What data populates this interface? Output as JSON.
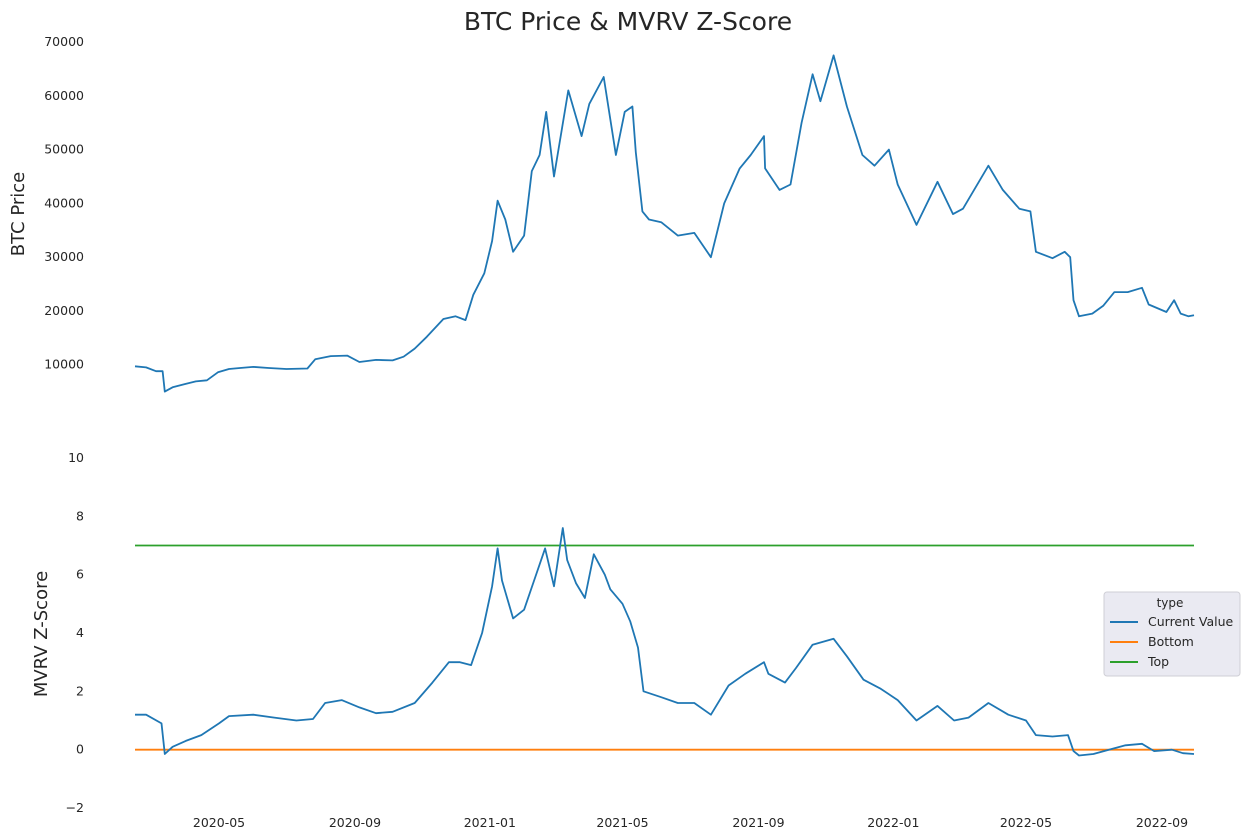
{
  "title": "BTC Price & MVRV Z-Score",
  "colors": {
    "blue": "#1f77b4",
    "orange": "#ff7f0e",
    "green": "#2ca02c"
  },
  "chart_data": [
    {
      "type": "line",
      "ylabel": "BTC  Price",
      "ylim": [
        4000,
        70000
      ],
      "yticks": [
        10000,
        20000,
        30000,
        40000,
        50000,
        60000,
        70000
      ],
      "xlim": [
        "2020-02-15",
        "2022-09-30"
      ],
      "grid": false,
      "series": [
        {
          "name": "",
          "color": "#1f77b4",
          "points": [
            [
              "2020-02-15",
              9700
            ],
            [
              "2020-02-25",
              9500
            ],
            [
              "2020-03-05",
              8800
            ],
            [
              "2020-03-11",
              8800
            ],
            [
              "2020-03-13",
              5000
            ],
            [
              "2020-03-20",
              5800
            ],
            [
              "2020-03-31",
              6400
            ],
            [
              "2020-04-10",
              6900
            ],
            [
              "2020-04-20",
              7100
            ],
            [
              "2020-04-30",
              8600
            ],
            [
              "2020-05-10",
              9200
            ],
            [
              "2020-05-20",
              9400
            ],
            [
              "2020-06-01",
              9600
            ],
            [
              "2020-06-15",
              9400
            ],
            [
              "2020-07-01",
              9200
            ],
            [
              "2020-07-20",
              9300
            ],
            [
              "2020-07-27",
              11000
            ],
            [
              "2020-08-10",
              11600
            ],
            [
              "2020-08-25",
              11700
            ],
            [
              "2020-09-05",
              10500
            ],
            [
              "2020-09-20",
              10900
            ],
            [
              "2020-10-05",
              10800
            ],
            [
              "2020-10-15",
              11500
            ],
            [
              "2020-10-25",
              13000
            ],
            [
              "2020-11-05",
              15200
            ],
            [
              "2020-11-20",
              18500
            ],
            [
              "2020-12-01",
              19000
            ],
            [
              "2020-12-10",
              18300
            ],
            [
              "2020-12-17",
              23000
            ],
            [
              "2020-12-27",
              27000
            ],
            [
              "2021-01-03",
              33000
            ],
            [
              "2021-01-08",
              40500
            ],
            [
              "2021-01-15",
              37000
            ],
            [
              "2021-01-22",
              31000
            ],
            [
              "2021-02-01",
              34000
            ],
            [
              "2021-02-08",
              46000
            ],
            [
              "2021-02-15",
              49000
            ],
            [
              "2021-02-21",
              57000
            ],
            [
              "2021-02-28",
              45000
            ],
            [
              "2021-03-13",
              61000
            ],
            [
              "2021-03-25",
              52500
            ],
            [
              "2021-04-01",
              58500
            ],
            [
              "2021-04-14",
              63500
            ],
            [
              "2021-04-25",
              49000
            ],
            [
              "2021-05-03",
              57000
            ],
            [
              "2021-05-10",
              58000
            ],
            [
              "2021-05-13",
              49500
            ],
            [
              "2021-05-19",
              38500
            ],
            [
              "2021-05-25",
              37000
            ],
            [
              "2021-06-05",
              36500
            ],
            [
              "2021-06-20",
              34000
            ],
            [
              "2021-07-05",
              34500
            ],
            [
              "2021-07-20",
              30000
            ],
            [
              "2021-08-01",
              40000
            ],
            [
              "2021-08-15",
              46500
            ],
            [
              "2021-08-25",
              49000
            ],
            [
              "2021-09-06",
              52500
            ],
            [
              "2021-09-07",
              46500
            ],
            [
              "2021-09-20",
              42500
            ],
            [
              "2021-09-30",
              43500
            ],
            [
              "2021-10-10",
              55000
            ],
            [
              "2021-10-20",
              64000
            ],
            [
              "2021-10-27",
              59000
            ],
            [
              "2021-11-08",
              67500
            ],
            [
              "2021-11-20",
              58000
            ],
            [
              "2021-12-04",
              49000
            ],
            [
              "2021-12-15",
              47000
            ],
            [
              "2021-12-28",
              50000
            ],
            [
              "2022-01-05",
              43500
            ],
            [
              "2022-01-22",
              36000
            ],
            [
              "2022-02-10",
              44000
            ],
            [
              "2022-02-24",
              38000
            ],
            [
              "2022-03-05",
              39000
            ],
            [
              "2022-03-28",
              47000
            ],
            [
              "2022-04-10",
              42500
            ],
            [
              "2022-04-25",
              39000
            ],
            [
              "2022-05-05",
              38500
            ],
            [
              "2022-05-10",
              31000
            ],
            [
              "2022-05-25",
              29800
            ],
            [
              "2022-06-05",
              31000
            ],
            [
              "2022-06-10",
              30000
            ],
            [
              "2022-06-13",
              22000
            ],
            [
              "2022-06-18",
              19000
            ],
            [
              "2022-06-30",
              19500
            ],
            [
              "2022-07-10",
              21000
            ],
            [
              "2022-07-20",
              23500
            ],
            [
              "2022-08-01",
              23500
            ],
            [
              "2022-08-14",
              24300
            ],
            [
              "2022-08-20",
              21200
            ],
            [
              "2022-09-05",
              19800
            ],
            [
              "2022-09-12",
              22000
            ],
            [
              "2022-09-18",
              19500
            ],
            [
              "2022-09-25",
              19000
            ],
            [
              "2022-09-30",
              19200
            ]
          ]
        }
      ]
    },
    {
      "type": "line",
      "ylabel": "MVRV Z-Score",
      "ylim": [
        -2,
        10
      ],
      "yticks": [
        -2,
        0,
        2,
        4,
        6,
        8,
        10
      ],
      "xlim": [
        "2020-02-15",
        "2022-09-30"
      ],
      "xticks": [
        "2020-05",
        "2020-09",
        "2021-01",
        "2021-05",
        "2021-09",
        "2022-01",
        "2022-05",
        "2022-09"
      ],
      "grid": false,
      "legend": {
        "title": "type",
        "placement": "right"
      },
      "series": [
        {
          "name": "Current Value",
          "color": "#1f77b4",
          "points": [
            [
              "2020-02-15",
              1.2
            ],
            [
              "2020-02-25",
              1.2
            ],
            [
              "2020-03-10",
              0.9
            ],
            [
              "2020-03-13",
              -0.15
            ],
            [
              "2020-03-20",
              0.1
            ],
            [
              "2020-04-01",
              0.3
            ],
            [
              "2020-04-15",
              0.5
            ],
            [
              "2020-05-01",
              0.9
            ],
            [
              "2020-05-10",
              1.15
            ],
            [
              "2020-06-01",
              1.2
            ],
            [
              "2020-06-20",
              1.1
            ],
            [
              "2020-07-10",
              1.0
            ],
            [
              "2020-07-25",
              1.05
            ],
            [
              "2020-08-05",
              1.6
            ],
            [
              "2020-08-20",
              1.7
            ],
            [
              "2020-09-05",
              1.45
            ],
            [
              "2020-09-20",
              1.25
            ],
            [
              "2020-10-05",
              1.3
            ],
            [
              "2020-10-25",
              1.6
            ],
            [
              "2020-11-10",
              2.3
            ],
            [
              "2020-11-25",
              3.0
            ],
            [
              "2020-12-05",
              3.0
            ],
            [
              "2020-12-15",
              2.9
            ],
            [
              "2020-12-25",
              4.0
            ],
            [
              "2021-01-03",
              5.6
            ],
            [
              "2021-01-08",
              6.9
            ],
            [
              "2021-01-12",
              5.8
            ],
            [
              "2021-01-22",
              4.5
            ],
            [
              "2021-02-01",
              4.8
            ],
            [
              "2021-02-10",
              5.8
            ],
            [
              "2021-02-20",
              6.9
            ],
            [
              "2021-02-28",
              5.6
            ],
            [
              "2021-03-08",
              7.6
            ],
            [
              "2021-03-12",
              6.5
            ],
            [
              "2021-03-20",
              5.7
            ],
            [
              "2021-03-28",
              5.2
            ],
            [
              "2021-04-05",
              6.7
            ],
            [
              "2021-04-15",
              6.0
            ],
            [
              "2021-04-20",
              5.5
            ],
            [
              "2021-05-01",
              5.0
            ],
            [
              "2021-05-08",
              4.4
            ],
            [
              "2021-05-15",
              3.5
            ],
            [
              "2021-05-20",
              2.0
            ],
            [
              "2021-06-05",
              1.8
            ],
            [
              "2021-06-20",
              1.6
            ],
            [
              "2021-07-05",
              1.6
            ],
            [
              "2021-07-20",
              1.2
            ],
            [
              "2021-08-05",
              2.2
            ],
            [
              "2021-08-20",
              2.6
            ],
            [
              "2021-09-06",
              3.0
            ],
            [
              "2021-09-10",
              2.6
            ],
            [
              "2021-09-25",
              2.3
            ],
            [
              "2021-10-05",
              2.8
            ],
            [
              "2021-10-20",
              3.6
            ],
            [
              "2021-11-08",
              3.8
            ],
            [
              "2021-11-20",
              3.2
            ],
            [
              "2021-12-05",
              2.4
            ],
            [
              "2021-12-20",
              2.1
            ],
            [
              "2022-01-05",
              1.7
            ],
            [
              "2022-01-22",
              1.0
            ],
            [
              "2022-02-10",
              1.5
            ],
            [
              "2022-02-25",
              1.0
            ],
            [
              "2022-03-10",
              1.1
            ],
            [
              "2022-03-28",
              1.6
            ],
            [
              "2022-04-15",
              1.2
            ],
            [
              "2022-05-01",
              1.0
            ],
            [
              "2022-05-10",
              0.5
            ],
            [
              "2022-05-25",
              0.45
            ],
            [
              "2022-06-08",
              0.5
            ],
            [
              "2022-06-13",
              -0.05
            ],
            [
              "2022-06-18",
              -0.2
            ],
            [
              "2022-07-01",
              -0.15
            ],
            [
              "2022-07-15",
              0.0
            ],
            [
              "2022-07-30",
              0.15
            ],
            [
              "2022-08-14",
              0.2
            ],
            [
              "2022-08-25",
              -0.05
            ],
            [
              "2022-09-10",
              0.0
            ],
            [
              "2022-09-20",
              -0.12
            ],
            [
              "2022-09-30",
              -0.15
            ]
          ]
        },
        {
          "name": "Bottom",
          "color": "#ff7f0e",
          "points": [
            [
              "2020-02-15",
              0
            ],
            [
              "2022-09-30",
              0
            ]
          ]
        },
        {
          "name": "Top",
          "color": "#2ca02c",
          "points": [
            [
              "2020-02-15",
              7
            ],
            [
              "2022-09-30",
              7
            ]
          ]
        }
      ]
    }
  ]
}
